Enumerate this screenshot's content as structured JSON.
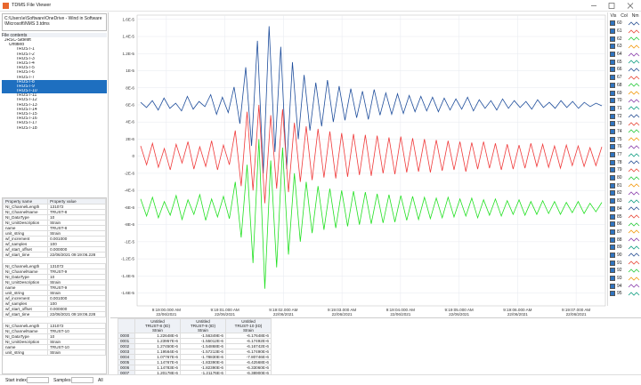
{
  "window": {
    "title": "TDMS File Viewer"
  },
  "file_path": "C:\\Users\\e\\Software\\OneDrive - Wind in Software\\Microsoft\\NMS 3.tdms",
  "file_contents_label": "File contents",
  "tree": {
    "root": "JRSC-Sidelift",
    "group": "Untitled",
    "channels": [
      "TRUST-1",
      "TRUST-2",
      "TRUST-3",
      "TRUST-4",
      "TRUST-5",
      "TRUST-6",
      "TRUST-7",
      "TRUST-8",
      "TRUST-9",
      "TRUST-10",
      "TRUST-11",
      "TRUST-12",
      "TRUST-13",
      "TRUST-14",
      "TRUST-15",
      "TRUST-16",
      "TRUST-17",
      "TRUST-18"
    ],
    "selected": [
      7,
      8,
      9
    ]
  },
  "properties": {
    "header": [
      "Property name",
      "Property value"
    ],
    "groups": [
      [
        [
          "NI_ChannelLength",
          "131072"
        ],
        [
          "NI_ChannelName",
          "TRUST-8"
        ],
        [
          "NI_DataType",
          "10"
        ],
        [
          "NI_UnitDescription",
          "Strain"
        ],
        [
          "name",
          "TRUST-8"
        ],
        [
          "unit_string",
          "Strain"
        ],
        [
          "wf_increment",
          "0.001000"
        ],
        [
          "wf_samples",
          "100"
        ],
        [
          "wf_start_offset",
          "0.000000"
        ],
        [
          "wf_start_time",
          "22/06/2021 09:19:06.228"
        ]
      ],
      [
        [
          "NI_ChannelLength",
          "131072"
        ],
        [
          "NI_ChannelName",
          "TRUST-9"
        ],
        [
          "NI_DataType",
          "10"
        ],
        [
          "NI_UnitDescription",
          "Strain"
        ],
        [
          "name",
          "TRUST-9"
        ],
        [
          "unit_string",
          "Strain"
        ],
        [
          "wf_increment",
          "0.001000"
        ],
        [
          "wf_samples",
          "100"
        ],
        [
          "wf_start_offset",
          "0.000000"
        ],
        [
          "wf_start_time",
          "22/06/2021 09:19:06.228"
        ]
      ],
      [
        [
          "NI_ChannelLength",
          "131072"
        ],
        [
          "NI_ChannelName",
          "TRUST-10"
        ],
        [
          "NI_DataType",
          "10"
        ],
        [
          "NI_UnitDescription",
          "Strain"
        ],
        [
          "name",
          "TRUST-10"
        ],
        [
          "unit_string",
          "Strain"
        ]
      ]
    ]
  },
  "status": {
    "start_index": "Start index",
    "samples": "Samples",
    "all": "All"
  },
  "legend_panel": {
    "headers": [
      "Vis",
      "Col",
      "Nm"
    ],
    "items": [
      {
        "label": "60",
        "color": "#2f5597"
      },
      {
        "label": "61",
        "color": "#e84c3d"
      },
      {
        "label": "62",
        "color": "#2ecc40"
      },
      {
        "label": "63",
        "color": "#f39c12"
      },
      {
        "label": "64",
        "color": "#8e44ad"
      },
      {
        "label": "65",
        "color": "#16a085"
      },
      {
        "label": "66",
        "color": "#2f5597"
      },
      {
        "label": "67",
        "color": "#e84c3d"
      },
      {
        "label": "68",
        "color": "#2ecc40"
      },
      {
        "label": "69",
        "color": "#f39c12"
      },
      {
        "label": "70",
        "color": "#8e44ad"
      },
      {
        "label": "71",
        "color": "#16a085"
      },
      {
        "label": "72",
        "color": "#2f5597"
      },
      {
        "label": "73",
        "color": "#e84c3d"
      },
      {
        "label": "74",
        "color": "#2ecc40"
      },
      {
        "label": "75",
        "color": "#f39c12"
      },
      {
        "label": "76",
        "color": "#8e44ad"
      },
      {
        "label": "77",
        "color": "#16a085"
      },
      {
        "label": "78",
        "color": "#2f5597"
      },
      {
        "label": "79",
        "color": "#e84c3d"
      },
      {
        "label": "80",
        "color": "#2ecc40"
      },
      {
        "label": "81",
        "color": "#f39c12"
      },
      {
        "label": "82",
        "color": "#8e44ad"
      },
      {
        "label": "83",
        "color": "#16a085"
      },
      {
        "label": "84",
        "color": "#2f5597"
      },
      {
        "label": "85",
        "color": "#e84c3d"
      },
      {
        "label": "86",
        "color": "#2ecc40"
      },
      {
        "label": "87",
        "color": "#f39c12"
      },
      {
        "label": "88",
        "color": "#8e44ad"
      },
      {
        "label": "89",
        "color": "#16a085"
      },
      {
        "label": "90",
        "color": "#2f5597"
      },
      {
        "label": "91",
        "color": "#e84c3d"
      },
      {
        "label": "92",
        "color": "#2ecc40"
      },
      {
        "label": "93",
        "color": "#f39c12"
      },
      {
        "label": "94",
        "color": "#8e44ad"
      },
      {
        "label": "95",
        "color": "#16a085"
      }
    ]
  },
  "chart_data": {
    "type": "line",
    "grid": true,
    "ylim": [
      -1.75e-05,
      1.65e-05
    ],
    "yticks": [
      {
        "value": 1.6e-05,
        "label": "1.6E-5"
      },
      {
        "value": 1.4e-05,
        "label": "1.4E-5"
      },
      {
        "value": 1.2e-05,
        "label": "1.2E-5"
      },
      {
        "value": 1e-05,
        "label": "1E-5"
      },
      {
        "value": 8e-06,
        "label": "8E-6"
      },
      {
        "value": 6e-06,
        "label": "6E-6"
      },
      {
        "value": 4e-06,
        "label": "4E-6"
      },
      {
        "value": 2e-06,
        "label": "2E-6"
      },
      0,
      {
        "value": -2e-06,
        "label": "-2E-6"
      },
      {
        "value": -4e-06,
        "label": "-4E-6"
      },
      {
        "value": -6e-06,
        "label": "-6E-6"
      },
      {
        "value": -8e-06,
        "label": "-8E-6"
      },
      {
        "value": -1e-05,
        "label": "-1E-5"
      },
      {
        "value": -1.2e-05,
        "label": "-1.2E-5"
      },
      {
        "value": -1.4e-05,
        "label": "-1.4E-5"
      },
      {
        "value": -1.6e-05,
        "label": "-1.6E-5"
      }
    ],
    "x_ticks": [
      {
        "time": "9:19:00.000 AM",
        "date": "22/06/2021"
      },
      {
        "time": "9:19:01.000 AM",
        "date": "22/06/2021"
      },
      {
        "time": "9:19:02.000 AM",
        "date": "22/06/2021"
      },
      {
        "time": "9:19:03.000 AM",
        "date": "22/06/2021"
      },
      {
        "time": "9:19:04.000 AM",
        "date": "22/06/2021"
      },
      {
        "time": "9:19:05.000 AM",
        "date": "22/06/2021"
      },
      {
        "time": "9:19:06.000 AM",
        "date": "22/06/2021"
      },
      {
        "time": "9:19:07.000 AM",
        "date": "22/06/2021"
      }
    ],
    "series": [
      {
        "name": "TRUST-8 (ID)",
        "group": "Untitled",
        "unit": "Strain",
        "color": "#1f4e9c",
        "values": [
          6.3e-06,
          5.7e-06,
          6.5e-06,
          5.4e-06,
          6.8e-06,
          5.6e-06,
          6.2e-06,
          5.3e-06,
          7e-06,
          5.5e-06,
          6.4e-06,
          5.8e-06,
          7.2e-06,
          4.9e-06,
          6.9e-06,
          5.1e-06,
          8.1e-06,
          3.8e-06,
          1.04e-05,
          1.2e-06,
          1.35e-05,
          -2e-06,
          1.52e-05,
          5e-07,
          1.28e-05,
          -1.5e-06,
          1.1e-05,
          2e-06,
          9.5e-06,
          3e-06,
          8.6e-06,
          3.5e-06,
          8.9e-06,
          4e-06,
          8.2e-06,
          4.2e-06,
          7.9e-06,
          4.5e-06,
          7.6e-06,
          4.3e-06,
          7.8e-06,
          4.8e-06,
          7.4e-06,
          4.9e-06,
          7.3e-06,
          5e-06,
          7.1e-06,
          5.2e-06,
          7e-06,
          5.3e-06,
          6.9e-06,
          5.2e-06,
          6.8e-06,
          5.4e-06,
          6.7e-06,
          5.5e-06,
          6.9e-06,
          5.3e-06,
          6.6e-06,
          5.6e-06,
          6.5e-06,
          5.4e-06,
          6.7e-06,
          5.6e-06,
          6.5e-06,
          5.7e-06,
          6.4e-06,
          5.5e-06,
          6.6e-06,
          5.7e-06,
          6.3e-06,
          5.6e-06,
          6.5e-06,
          5.7e-06,
          6.4e-06,
          5.6e-06,
          6.3e-06,
          5.8e-06,
          6.2e-06,
          5.9e-06
        ]
      },
      {
        "name": "TRUST-9 (ID)",
        "group": "Untitled",
        "unit": "Strain",
        "color": "#f03a3a",
        "values": [
          1.2e-06,
          -1e-06,
          1.5e-06,
          -1.3e-06,
          9e-07,
          -1.6e-06,
          1.4e-06,
          -8e-07,
          1.7e-06,
          -1.5e-06,
          1.1e-06,
          -1.2e-06,
          1.8e-06,
          -1.6e-06,
          1.3e-06,
          -1e-06,
          3e-06,
          -3.5e-06,
          5.2e-06,
          -4e-06,
          6e-06,
          -5.5e-06,
          4.8e-06,
          -3.8e-06,
          5.5e-06,
          -4.2e-06,
          3.9e-06,
          -3e-06,
          3.5e-06,
          -2.8e-06,
          3.2e-06,
          -2.5e-06,
          2.9e-06,
          -2.6e-06,
          2.7e-06,
          -2.4e-06,
          2.6e-06,
          -2.2e-06,
          2.5e-06,
          -2.3e-06,
          2.4e-06,
          -2e-06,
          2.2e-06,
          -2.1e-06,
          2.3e-06,
          -1.9e-06,
          2.1e-06,
          -1.8e-06,
          2e-06,
          -1.9e-06,
          1.9e-06,
          -1.7e-06,
          1.8e-06,
          -1.6e-06,
          1.7e-06,
          -1.8e-06,
          1.6e-06,
          -1.5e-06,
          1.7e-06,
          -1.4e-06,
          1.5e-06,
          -1.6e-06,
          1.4e-06,
          -1.5e-06,
          1.3e-06,
          -1.4e-06,
          1.5e-06,
          -1.2e-06,
          1.4e-06,
          -1.3e-06,
          1.2e-06,
          -1.4e-06,
          1.3e-06,
          -1.1e-06,
          1.2e-06,
          -1.2e-06,
          1e-06,
          -1.1e-06,
          1.1e-06
        ]
      },
      {
        "name": "TRUST-10 (ID)",
        "group": "Untitled",
        "unit": "Strain",
        "color": "#22e022",
        "values": [
          -5e-06,
          -7e-06,
          -4.8e-06,
          -7.2e-06,
          -5.3e-06,
          -6.9e-06,
          -4.6e-06,
          -7.4e-06,
          -5.1e-06,
          -6.8e-06,
          -4.5e-06,
          -7.5e-06,
          -5e-06,
          -7.1e-06,
          -4.7e-06,
          -7.3e-06,
          -3e-06,
          -9.5e-06,
          -1e-06,
          -1.25e-05,
          2e-06,
          -1.55e-05,
          -5e-07,
          -1.3e-05,
          1e-06,
          -1.15e-05,
          -2e-06,
          -1e-05,
          -3e-06,
          -9e-06,
          -3.5e-06,
          -8.6e-06,
          -3.8e-06,
          -8.4e-06,
          -4e-06,
          -8.2e-06,
          -4.1e-06,
          -8e-06,
          -4.2e-06,
          -7.9e-06,
          -4.4e-06,
          -7.8e-06,
          -4.5e-06,
          -7.7e-06,
          -4.6e-06,
          -7.5e-06,
          -4.7e-06,
          -7.4e-06,
          -4.8e-06,
          -7.3e-06,
          -4.9e-06,
          -7.2e-06,
          -4.8e-06,
          -7.1e-06,
          -5e-06,
          -7e-06,
          -4.9e-06,
          -7.2e-06,
          -5.1e-06,
          -6.9e-06,
          -5e-06,
          -7e-06,
          -5.2e-06,
          -6.8e-06,
          -5.1e-06,
          -6.9e-06,
          -5.3e-06,
          -6.8e-06,
          -5.2e-06,
          -6.7e-06,
          -5.3e-06,
          -6.8e-06,
          -5.4e-06,
          -6.6e-06,
          -5.3e-06,
          -6.7e-06,
          -5.5e-06,
          -6.5e-06,
          -5.4e-06
        ]
      }
    ]
  },
  "data_table": {
    "rows": [
      {
        "index": "0000",
        "cells": [
          "1.22648E-6",
          "-1.56349E-6",
          "-6.17648E-6"
        ]
      },
      {
        "index": "0001",
        "cells": [
          "1.23957E-6",
          "-1.55012E-6",
          "-6.17492E-6"
        ]
      },
      {
        "index": "0002",
        "cells": [
          "1.27450E-6",
          "-1.54868E-6",
          "-6.16742E-6"
        ]
      },
      {
        "index": "0003",
        "cells": [
          "1.19564E-6",
          "-1.57213E-6",
          "-6.17490E-6"
        ]
      },
      {
        "index": "0004",
        "cells": [
          "1.07767E-6",
          "-1.78830E-6",
          "-7.80746E-6"
        ]
      },
      {
        "index": "0005",
        "cells": [
          "1.14767E-6",
          "-1.83390E-6",
          "-6.42568E-6"
        ]
      },
      {
        "index": "0006",
        "cells": [
          "1.14783E-6",
          "-1.82390E-6",
          "-6.33060E-6"
        ]
      },
      {
        "index": "0007",
        "cells": [
          "1.20178E-6",
          "-1.21176E-6",
          "-6.38900E-6"
        ]
      }
    ]
  }
}
